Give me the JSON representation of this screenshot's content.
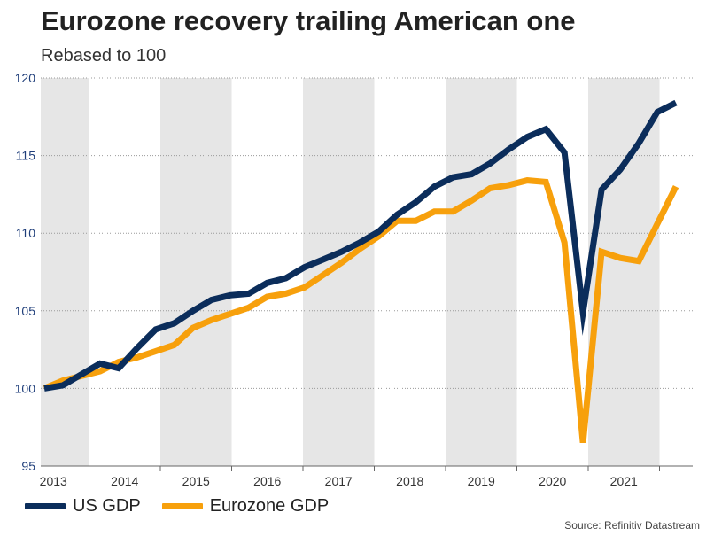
{
  "title": "Eurozone recovery trailing American one",
  "subtitle": "Rebased to 100",
  "source": "Source: Refinitiv Datastream",
  "colors": {
    "us": "#0b2d5b",
    "ez": "#f7a00c",
    "band": "#e6e6e6",
    "grid": "#9a9a9a",
    "axis": "#1f3e7a"
  },
  "chart_data": {
    "type": "line",
    "title": "Eurozone recovery trailing American one",
    "subtitle": "Rebased to 100",
    "ylabel": "",
    "xlabel": "",
    "ylim": [
      95,
      120
    ],
    "yticks": [
      "95",
      "100",
      "105",
      "110",
      "115",
      "120"
    ],
    "years": [
      "2013",
      "2014",
      "2015",
      "2016",
      "2017",
      "2018",
      "2019",
      "2020",
      "2021"
    ],
    "x_quarters": [
      "2013Q1",
      "2013Q2",
      "2013Q3",
      "2013Q4",
      "2014Q1",
      "2014Q2",
      "2014Q3",
      "2014Q4",
      "2015Q1",
      "2015Q2",
      "2015Q3",
      "2015Q4",
      "2016Q1",
      "2016Q2",
      "2016Q3",
      "2016Q4",
      "2017Q1",
      "2017Q2",
      "2017Q3",
      "2017Q4",
      "2018Q1",
      "2018Q2",
      "2018Q3",
      "2018Q4",
      "2019Q1",
      "2019Q2",
      "2019Q3",
      "2019Q4",
      "2020Q1",
      "2020Q2",
      "2020Q3",
      "2020Q4",
      "2021Q1",
      "2021Q2",
      "2021Q3"
    ],
    "series": [
      {
        "name": "US GDP",
        "color": "#0b2d5b",
        "values": [
          100.0,
          100.2,
          100.9,
          101.6,
          101.3,
          102.6,
          103.8,
          104.2,
          105.0,
          105.7,
          106.0,
          106.1,
          106.8,
          107.1,
          107.8,
          108.3,
          108.8,
          109.4,
          110.1,
          111.2,
          112.0,
          113.0,
          113.6,
          113.8,
          114.5,
          115.4,
          116.2,
          116.7,
          115.2,
          104.9,
          112.8,
          114.1,
          115.8,
          117.8,
          118.4
        ]
      },
      {
        "name": "Eurozone GDP",
        "color": "#f7a00c",
        "values": [
          100.0,
          100.5,
          100.8,
          101.1,
          101.7,
          102.0,
          102.4,
          102.8,
          103.9,
          104.4,
          104.8,
          105.2,
          105.9,
          106.1,
          106.5,
          107.3,
          108.1,
          109.0,
          109.8,
          110.8,
          110.8,
          111.4,
          111.4,
          112.1,
          112.9,
          113.1,
          113.4,
          113.3,
          109.4,
          96.5,
          108.8,
          108.4,
          108.2,
          110.6,
          113.0
        ]
      }
    ],
    "shaded_years": [
      "2013",
      "2015",
      "2017",
      "2019",
      "2021"
    ],
    "grid": true,
    "legend": "bottom-left"
  }
}
